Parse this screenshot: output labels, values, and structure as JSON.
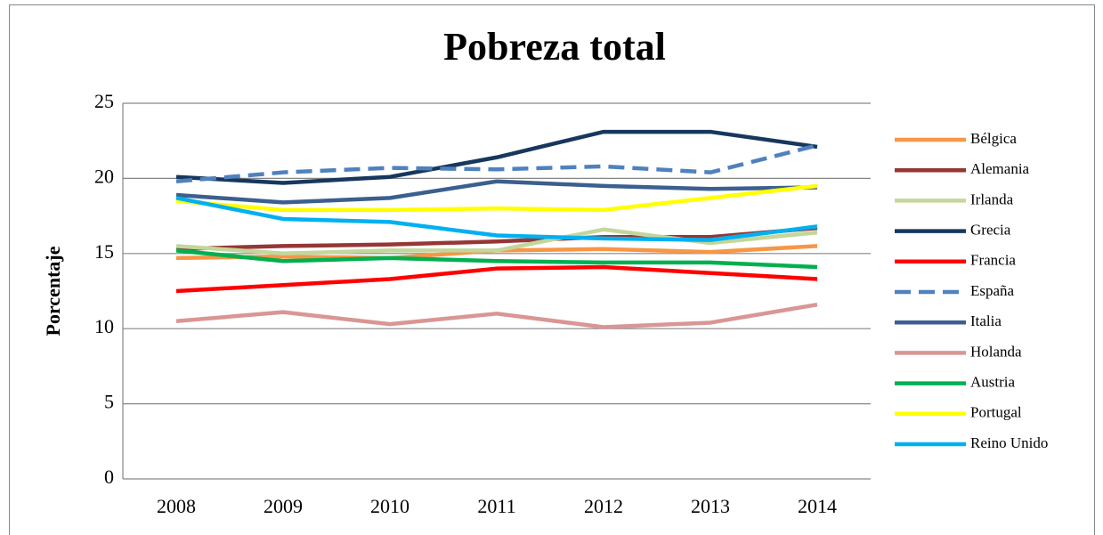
{
  "chart_data": {
    "type": "line",
    "title": "Pobreza total",
    "y_label": "Porcentaje",
    "categories": [
      "2008",
      "2009",
      "2010",
      "2011",
      "2012",
      "2013",
      "2014"
    ],
    "ylim": [
      0,
      25
    ],
    "yticks": [
      0,
      5,
      10,
      15,
      20,
      25
    ],
    "grid": true,
    "legend": "right",
    "series": [
      {
        "name": "Bélgica",
        "color": "#f79646",
        "values": [
          14.7,
          14.8,
          14.7,
          15.2,
          15.3,
          15.1,
          15.5
        ]
      },
      {
        "name": "Alemania",
        "color": "#953735",
        "values": [
          15.3,
          15.5,
          15.6,
          15.8,
          16.1,
          16.1,
          16.7
        ]
      },
      {
        "name": "Irlanda",
        "color": "#c3d69b",
        "values": [
          15.5,
          15.0,
          15.2,
          15.2,
          16.6,
          15.7,
          16.4
        ]
      },
      {
        "name": "Grecia",
        "color": "#17375e",
        "values": [
          20.1,
          19.7,
          20.1,
          21.4,
          23.1,
          23.1,
          22.1
        ]
      },
      {
        "name": "Francia",
        "color": "#ff0000",
        "values": [
          12.5,
          12.9,
          13.3,
          14.0,
          14.1,
          13.7,
          13.3
        ]
      },
      {
        "name": "España",
        "color": "#4f81bd",
        "dash": "dashed",
        "values": [
          19.8,
          20.4,
          20.7,
          20.6,
          20.8,
          20.4,
          22.2
        ]
      },
      {
        "name": "Italia",
        "color": "#3b5f8f",
        "values": [
          18.9,
          18.4,
          18.7,
          19.8,
          19.5,
          19.3,
          19.4
        ]
      },
      {
        "name": "Holanda",
        "color": "#d99694",
        "values": [
          10.5,
          11.1,
          10.3,
          11.0,
          10.1,
          10.4,
          11.6
        ]
      },
      {
        "name": "Austria",
        "color": "#00b050",
        "values": [
          15.2,
          14.5,
          14.7,
          14.5,
          14.4,
          14.4,
          14.1
        ]
      },
      {
        "name": "Portugal",
        "color": "#ffff00",
        "values": [
          18.5,
          17.9,
          17.9,
          18.0,
          17.9,
          18.7,
          19.5
        ]
      },
      {
        "name": "Reino Unido",
        "color": "#00b0f0",
        "values": [
          18.7,
          17.3,
          17.1,
          16.2,
          16.0,
          15.9,
          16.8
        ]
      }
    ]
  }
}
